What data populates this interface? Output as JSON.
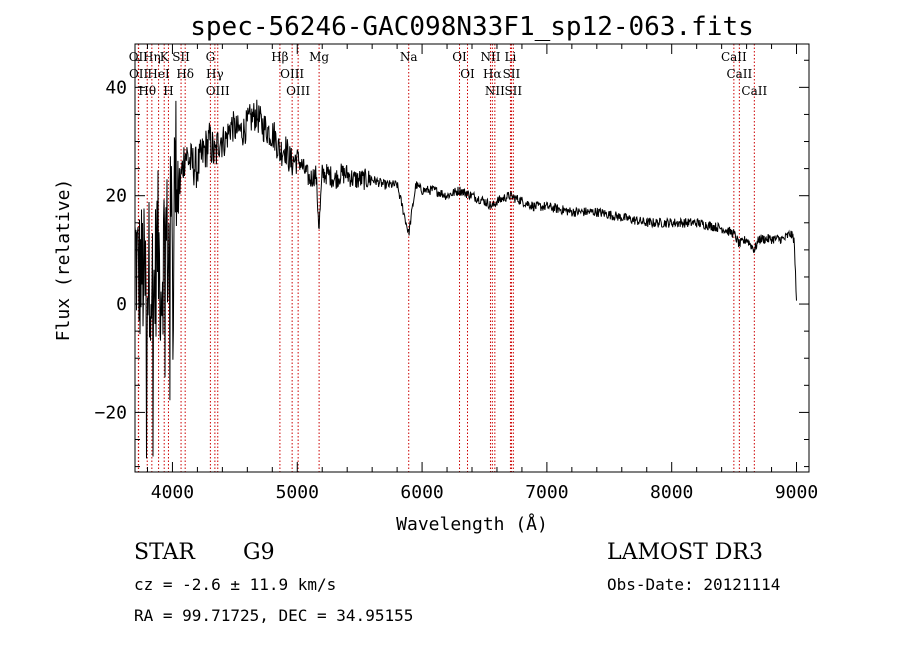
{
  "chart_data": {
    "type": "line",
    "title": "spec-56246-GAC098N33F1_sp12-063.fits",
    "xlabel": "Wavelength (Å)",
    "ylabel": "Flux (relative)",
    "xlim": [
      3700,
      9100
    ],
    "ylim": [
      -31,
      48
    ],
    "xticks": [
      4000,
      5000,
      6000,
      7000,
      8000,
      9000
    ],
    "yticks": [
      -20,
      0,
      20,
      40
    ],
    "series": [
      {
        "name": "flux",
        "x": [
          3700,
          3730,
          3760,
          3790,
          3820,
          3850,
          3880,
          3910,
          3940,
          3970,
          4000,
          4030,
          4060,
          4100,
          4150,
          4200,
          4250,
          4300,
          4340,
          4380,
          4420,
          4470,
          4520,
          4570,
          4620,
          4670,
          4720,
          4770,
          4820,
          4861,
          4900,
          4950,
          5000,
          5050,
          5100,
          5150,
          5175,
          5200,
          5250,
          5300,
          5350,
          5400,
          5450,
          5500,
          5600,
          5700,
          5800,
          5893,
          5950,
          6000,
          6100,
          6200,
          6300,
          6400,
          6500,
          6563,
          6600,
          6700,
          6800,
          6900,
          7000,
          7200,
          7400,
          7600,
          7800,
          8000,
          8200,
          8400,
          8498,
          8542,
          8600,
          8662,
          8700,
          8800,
          8900,
          8950,
          8980,
          9000
        ],
        "y": [
          10,
          5,
          6,
          2,
          8,
          1,
          12,
          3,
          14,
          9,
          20,
          26,
          22,
          28,
          26,
          25,
          28,
          30,
          27,
          31,
          30,
          33,
          32,
          32,
          34,
          35,
          33,
          32,
          31,
          28,
          29,
          26,
          27,
          25,
          23,
          24,
          14,
          24,
          24,
          23,
          24,
          24,
          23,
          23,
          23,
          22,
          22,
          13,
          22,
          21,
          21,
          20,
          21,
          20,
          19,
          18,
          19,
          20,
          19,
          18,
          18,
          17,
          17,
          16,
          15,
          15,
          15,
          14,
          13,
          11,
          12,
          10,
          12,
          12,
          12,
          13,
          12,
          1
        ]
      }
    ],
    "line_labels": [
      {
        "name": "Hθ",
        "wavelength": 3798
      },
      {
        "name": "OII",
        "wavelength": 3727
      },
      {
        "name": "OII",
        "wavelength": 3729
      },
      {
        "name": "Hη",
        "wavelength": 3835
      },
      {
        "name": "HeI",
        "wavelength": 3889
      },
      {
        "name": "K",
        "wavelength": 3934
      },
      {
        "name": "H",
        "wavelength": 3968
      },
      {
        "name": "SII",
        "wavelength": 4069
      },
      {
        "name": "Hδ",
        "wavelength": 4102
      },
      {
        "name": "OIII",
        "wavelength": 4363
      },
      {
        "name": "Hγ",
        "wavelength": 4340
      },
      {
        "name": "G",
        "wavelength": 4304
      },
      {
        "name": "Hβ",
        "wavelength": 4861
      },
      {
        "name": "OIII",
        "wavelength": 4959
      },
      {
        "name": "OIII",
        "wavelength": 5007
      },
      {
        "name": "Mg",
        "wavelength": 5175
      },
      {
        "name": "Na",
        "wavelength": 5893
      },
      {
        "name": "OI",
        "wavelength": 6300
      },
      {
        "name": "OI",
        "wavelength": 6364
      },
      {
        "name": "Hα",
        "wavelength": 6563
      },
      {
        "name": "NII",
        "wavelength": 6548
      },
      {
        "name": "NII",
        "wavelength": 6583
      },
      {
        "name": "SII",
        "wavelength": 6716
      },
      {
        "name": "SII",
        "wavelength": 6731
      },
      {
        "name": "Li",
        "wavelength": 6708
      },
      {
        "name": "CaII",
        "wavelength": 8542
      },
      {
        "name": "CaII",
        "wavelength": 8498
      },
      {
        "name": "CaII",
        "wavelength": 8662
      }
    ]
  },
  "info": {
    "object_class": "STAR",
    "subclass": "G9",
    "survey": "LAMOST DR3",
    "redshift": "cz = -2.6 ± 11.9 km/s",
    "obs_date": "Obs-Date: 20121114",
    "coords": "RA =  99.71725, DEC =  34.95155"
  },
  "colors": {
    "line_marker": "#cc0000",
    "spectrum": "#000000",
    "axes": "#000000",
    "background": "#ffffff"
  }
}
